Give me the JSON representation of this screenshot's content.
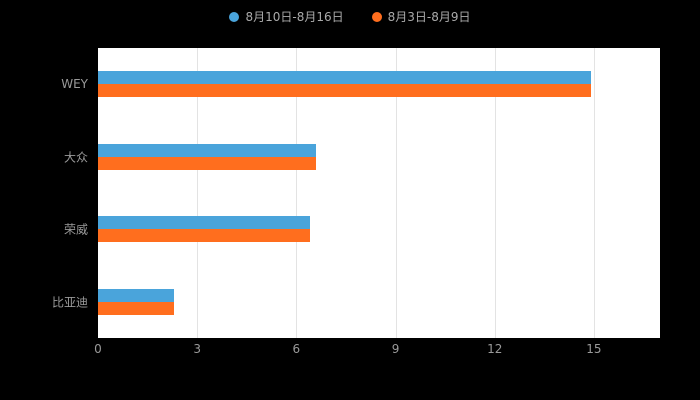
{
  "legend": {
    "items": [
      {
        "label": "8月10日-8月16日",
        "color": "#4AA4DB"
      },
      {
        "label": "8月3日-8月9日",
        "color": "#FF6E1E"
      }
    ]
  },
  "colors": {
    "plot_background": "#ffffff",
    "page_background": "#000000",
    "gridline": "#e3e3e3",
    "axis_text": "#9a9a9a"
  },
  "chart_data": {
    "type": "bar",
    "orientation": "horizontal",
    "title": "",
    "xlabel": "",
    "ylabel": "",
    "categories": [
      "WEY",
      "大众",
      "荣威",
      "比亚迪"
    ],
    "series": [
      {
        "name": "8月10日-8月16日",
        "color": "#4AA4DB",
        "values": [
          14.9,
          6.6,
          6.4,
          2.3
        ]
      },
      {
        "name": "8月3日-8月9日",
        "color": "#FF6E1E",
        "values": [
          14.9,
          6.6,
          6.4,
          2.3
        ]
      }
    ],
    "xlim": [
      0,
      17
    ],
    "xticks": [
      0,
      3,
      6,
      9,
      12,
      15
    ],
    "grid": true,
    "legend_position": "top"
  }
}
